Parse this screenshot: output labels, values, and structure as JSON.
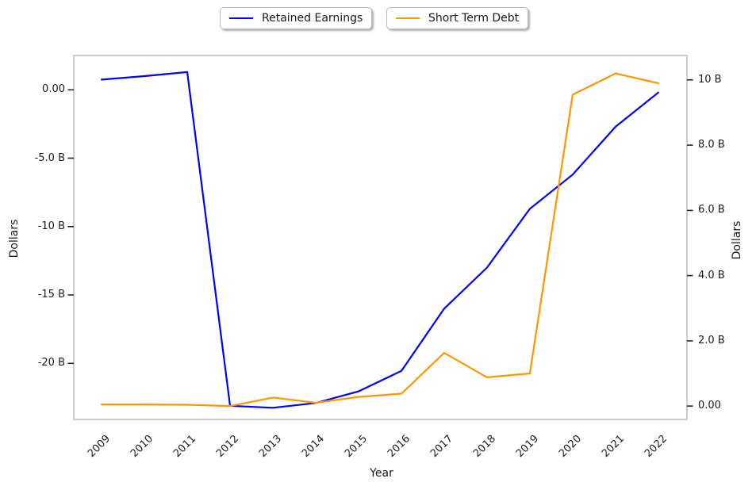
{
  "figure": {
    "background": "#ffffff"
  },
  "colors": {
    "retained_earnings_line": "#0000ff",
    "short_term_debt_line": "#ff9800",
    "plot_border": "#cccccc",
    "tick": "#262626",
    "text": "#1a1a1a",
    "legend_border": "#b9b9b9"
  },
  "legend": {
    "position": "top-center",
    "items": [
      {
        "label": "Retained Earnings",
        "color": "#0000ff"
      },
      {
        "label": "Short Term Debt",
        "color": "#ff9800"
      }
    ]
  },
  "chart_data": {
    "type": "line",
    "title": "",
    "xlabel": "Year",
    "ylabel_left": "Dollars",
    "ylabel_right": "Dollars",
    "x": [
      2009,
      2010,
      2011,
      2012,
      2013,
      2014,
      2015,
      2016,
      2017,
      2018,
      2019,
      2020,
      2021,
      2022
    ],
    "x_tick_labels": [
      "2009",
      "2010",
      "2011",
      "2012",
      "2013",
      "2014",
      "2015",
      "2016",
      "2017",
      "2018",
      "2019",
      "2020",
      "2021",
      "2022"
    ],
    "series": [
      {
        "name": "Retained Earnings",
        "yaxis": "left",
        "color": "#0000ff",
        "units": "billions",
        "values_billions": [
          0.75,
          1.0,
          1.3,
          -23.1,
          -23.25,
          -22.9,
          -22.05,
          -20.55,
          -16.0,
          -13.0,
          -8.7,
          -6.2,
          -2.7,
          -0.2
        ]
      },
      {
        "name": "Short Term Debt",
        "yaxis": "right",
        "color": "#ff9800",
        "units": "billions",
        "values_billions": [
          0.05,
          0.05,
          0.04,
          0.0,
          0.26,
          0.1,
          0.28,
          0.38,
          1.63,
          0.88,
          1.0,
          9.55,
          10.2,
          9.9
        ]
      }
    ],
    "left_ticks": [
      {
        "label": "0.00",
        "value": 0
      },
      {
        "label": "-5.0 B",
        "value": -5
      },
      {
        "label": "-10 B",
        "value": -10
      },
      {
        "label": "-15 B",
        "value": -15
      },
      {
        "label": "-20 B",
        "value": -20
      }
    ],
    "right_ticks": [
      {
        "label": "10 B",
        "value": 10
      },
      {
        "label": "8.0 B",
        "value": 8
      },
      {
        "label": "6.0 B",
        "value": 6
      },
      {
        "label": "4.0 B",
        "value": 4
      },
      {
        "label": "2.0 B",
        "value": 2
      },
      {
        "label": "0.00",
        "value": 0
      }
    ],
    "xlim": [
      2008.35,
      2022.67
    ],
    "ylim_left_billions": [
      -24.1,
      2.51
    ],
    "ylim_right_billions": [
      -0.41,
      10.75
    ],
    "grid": false,
    "legend_position": "top-center"
  }
}
